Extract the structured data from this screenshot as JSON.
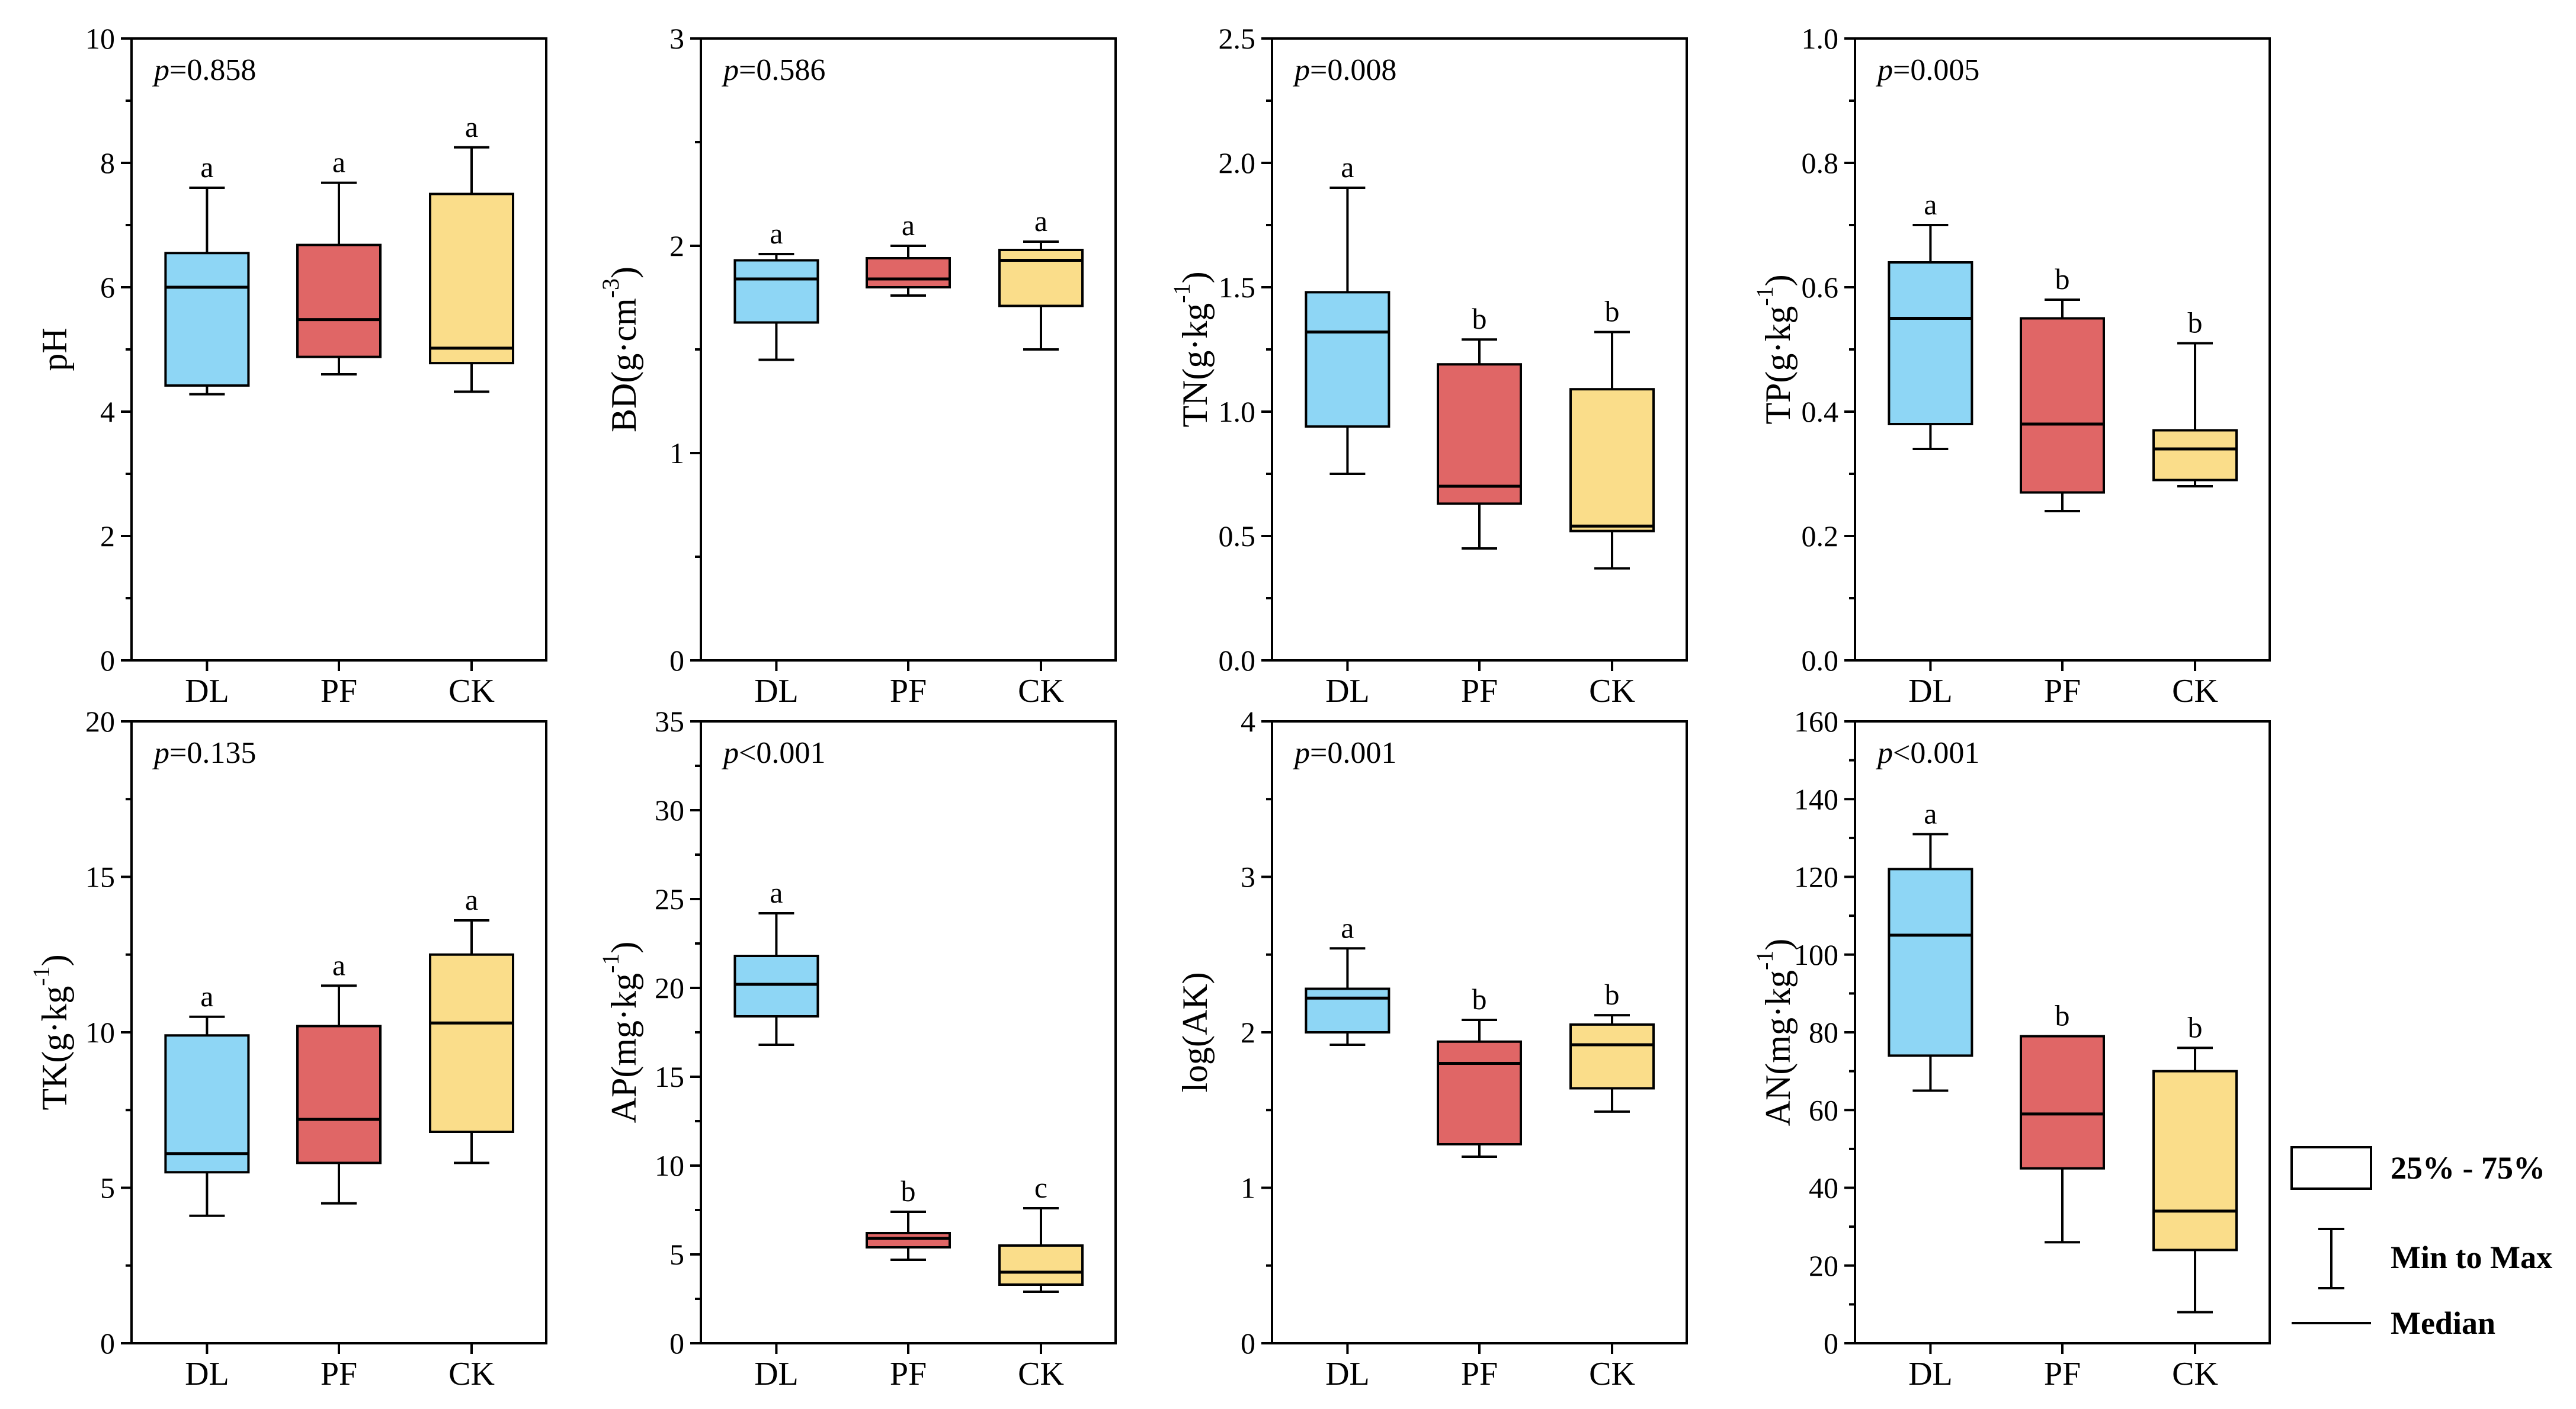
{
  "chart_data": [
    {
      "type": "boxplot",
      "id": "ph",
      "ylabel": "pH",
      "ylabel_parts": [
        [
          "pH",
          ""
        ]
      ],
      "ylim": [
        0,
        10
      ],
      "yticks": [
        0,
        2,
        4,
        6,
        8,
        10
      ],
      "tick_decimals": 0,
      "minor": true,
      "p_var": "p",
      "p_rest": "=0.858",
      "categories": [
        "DL",
        "PF",
        "CK"
      ],
      "boxes": [
        {
          "min": 4.28,
          "q1": 4.42,
          "median": 6.0,
          "q3": 6.55,
          "max": 7.6,
          "sig": "a"
        },
        {
          "min": 4.6,
          "q1": 4.88,
          "median": 5.48,
          "q3": 6.68,
          "max": 7.68,
          "sig": "a"
        },
        {
          "min": 4.32,
          "q1": 4.78,
          "median": 5.02,
          "q3": 7.5,
          "max": 8.25,
          "sig": "a"
        }
      ]
    },
    {
      "type": "boxplot",
      "id": "bd",
      "ylabel": "BD(g·cm-3)",
      "ylabel_parts": [
        [
          "BD(g·cm",
          ""
        ],
        [
          "-3",
          "sup"
        ],
        [
          ")",
          ""
        ]
      ],
      "ylim": [
        0,
        3
      ],
      "yticks": [
        0,
        1,
        2,
        3
      ],
      "tick_decimals": 0,
      "minor": true,
      "p_var": "p",
      "p_rest": "=0.586",
      "categories": [
        "DL",
        "PF",
        "CK"
      ],
      "boxes": [
        {
          "min": 1.45,
          "q1": 1.63,
          "median": 1.84,
          "q3": 1.93,
          "max": 1.96,
          "sig": "a"
        },
        {
          "min": 1.76,
          "q1": 1.8,
          "median": 1.84,
          "q3": 1.94,
          "max": 2.0,
          "sig": "a"
        },
        {
          "min": 1.5,
          "q1": 1.71,
          "median": 1.93,
          "q3": 1.98,
          "max": 2.02,
          "sig": "a"
        }
      ]
    },
    {
      "type": "boxplot",
      "id": "tn",
      "ylabel": "TN(g·kg-1)",
      "ylabel_parts": [
        [
          "TN(g·kg",
          ""
        ],
        [
          "-1",
          "sup"
        ],
        [
          ")",
          ""
        ]
      ],
      "ylim": [
        0,
        2.5
      ],
      "yticks": [
        0,
        0.5,
        1.0,
        1.5,
        2.0,
        2.5
      ],
      "tick_decimals": 1,
      "minor": true,
      "p_var": "p",
      "p_rest": "=0.008",
      "categories": [
        "DL",
        "PF",
        "CK"
      ],
      "boxes": [
        {
          "min": 0.75,
          "q1": 0.94,
          "median": 1.32,
          "q3": 1.48,
          "max": 1.9,
          "sig": "a"
        },
        {
          "min": 0.45,
          "q1": 0.63,
          "median": 0.7,
          "q3": 1.19,
          "max": 1.29,
          "sig": "b"
        },
        {
          "min": 0.37,
          "q1": 0.52,
          "median": 0.54,
          "q3": 1.09,
          "max": 1.32,
          "sig": "b"
        }
      ]
    },
    {
      "type": "boxplot",
      "id": "tp",
      "ylabel": "TP(g·kg-1)",
      "ylabel_parts": [
        [
          "TP(g·kg",
          ""
        ],
        [
          "-1",
          "sup"
        ],
        [
          ")",
          ""
        ]
      ],
      "ylim": [
        0,
        1.0
      ],
      "yticks": [
        0,
        0.2,
        0.4,
        0.6,
        0.8,
        1.0
      ],
      "tick_decimals": 1,
      "minor": true,
      "p_var": "p",
      "p_rest": "=0.005",
      "categories": [
        "DL",
        "PF",
        "CK"
      ],
      "boxes": [
        {
          "min": 0.34,
          "q1": 0.38,
          "median": 0.55,
          "q3": 0.64,
          "max": 0.7,
          "sig": "a"
        },
        {
          "min": 0.24,
          "q1": 0.27,
          "median": 0.38,
          "q3": 0.55,
          "max": 0.58,
          "sig": "b"
        },
        {
          "min": 0.28,
          "q1": 0.29,
          "median": 0.34,
          "q3": 0.37,
          "max": 0.51,
          "sig": "b"
        }
      ]
    },
    {
      "type": "boxplot",
      "id": "tk",
      "ylabel": "TK(g·kg-1)",
      "ylabel_parts": [
        [
          "TK(g·kg",
          ""
        ],
        [
          "-1",
          "sup"
        ],
        [
          ")",
          ""
        ]
      ],
      "ylim": [
        0,
        20
      ],
      "yticks": [
        0,
        5,
        10,
        15,
        20
      ],
      "tick_decimals": 0,
      "minor": true,
      "p_var": "p",
      "p_rest": "=0.135",
      "categories": [
        "DL",
        "PF",
        "CK"
      ],
      "boxes": [
        {
          "min": 4.1,
          "q1": 5.5,
          "median": 6.1,
          "q3": 9.9,
          "max": 10.5,
          "sig": "a"
        },
        {
          "min": 4.5,
          "q1": 5.8,
          "median": 7.2,
          "q3": 10.2,
          "max": 11.5,
          "sig": "a"
        },
        {
          "min": 5.8,
          "q1": 6.8,
          "median": 10.3,
          "q3": 12.5,
          "max": 13.6,
          "sig": "a"
        }
      ]
    },
    {
      "type": "boxplot",
      "id": "ap",
      "ylabel": "AP(mg·kg-1)",
      "ylabel_parts": [
        [
          "AP(mg·kg",
          ""
        ],
        [
          "-1",
          "sup"
        ],
        [
          ")",
          ""
        ]
      ],
      "ylim": [
        0,
        35
      ],
      "yticks": [
        0,
        5,
        10,
        15,
        20,
        25,
        30,
        35
      ],
      "tick_decimals": 0,
      "minor": true,
      "p_var": "p",
      "p_rest": "<0.001",
      "categories": [
        "DL",
        "PF",
        "CK"
      ],
      "boxes": [
        {
          "min": 16.8,
          "q1": 18.4,
          "median": 20.2,
          "q3": 21.8,
          "max": 24.2,
          "sig": "a"
        },
        {
          "min": 4.7,
          "q1": 5.4,
          "median": 5.9,
          "q3": 6.2,
          "max": 7.4,
          "sig": "b"
        },
        {
          "min": 2.9,
          "q1": 3.3,
          "median": 4.0,
          "q3": 5.5,
          "max": 7.6,
          "sig": "c"
        }
      ]
    },
    {
      "type": "boxplot",
      "id": "ak",
      "ylabel": "log(AK)",
      "ylabel_parts": [
        [
          "log(AK)",
          ""
        ]
      ],
      "ylim": [
        0,
        4
      ],
      "yticks": [
        0,
        1,
        2,
        3,
        4
      ],
      "tick_decimals": 0,
      "minor": true,
      "p_var": "p",
      "p_rest": "=0.001",
      "categories": [
        "DL",
        "PF",
        "CK"
      ],
      "boxes": [
        {
          "min": 1.92,
          "q1": 2.0,
          "median": 2.22,
          "q3": 2.28,
          "max": 2.54,
          "sig": "a"
        },
        {
          "min": 1.2,
          "q1": 1.28,
          "median": 1.8,
          "q3": 1.94,
          "max": 2.08,
          "sig": "b"
        },
        {
          "min": 1.49,
          "q1": 1.64,
          "median": 1.92,
          "q3": 2.05,
          "max": 2.11,
          "sig": "b"
        }
      ]
    },
    {
      "type": "boxplot",
      "id": "an",
      "ylabel": "AN(mg·kg-1)",
      "ylabel_parts": [
        [
          "AN(mg·kg",
          ""
        ],
        [
          "-1",
          "sup"
        ],
        [
          ")",
          ""
        ]
      ],
      "ylim": [
        0,
        160
      ],
      "yticks": [
        0,
        20,
        40,
        60,
        80,
        100,
        120,
        140,
        160
      ],
      "tick_decimals": 0,
      "minor": true,
      "p_var": "p",
      "p_rest": "<0.001",
      "categories": [
        "DL",
        "PF",
        "CK"
      ],
      "boxes": [
        {
          "min": 65,
          "q1": 74,
          "median": 105,
          "q3": 122,
          "max": 131,
          "sig": "a"
        },
        {
          "min": 26,
          "q1": 45,
          "median": 59,
          "q3": 79,
          "max": 79,
          "sig": "b"
        },
        {
          "min": 8,
          "q1": 24,
          "median": 34,
          "q3": 70,
          "max": 76,
          "sig": "b"
        }
      ]
    }
  ],
  "colors": {
    "DL": "#8ED6F5",
    "PF": "#E06666",
    "CK": "#FADD8A",
    "stroke": "#000000"
  },
  "legend": {
    "items": [
      {
        "symbol": "box",
        "label": "25% - 75%"
      },
      {
        "symbol": "whisker",
        "label": "Min to Max"
      },
      {
        "symbol": "line",
        "label": "Median"
      }
    ]
  }
}
